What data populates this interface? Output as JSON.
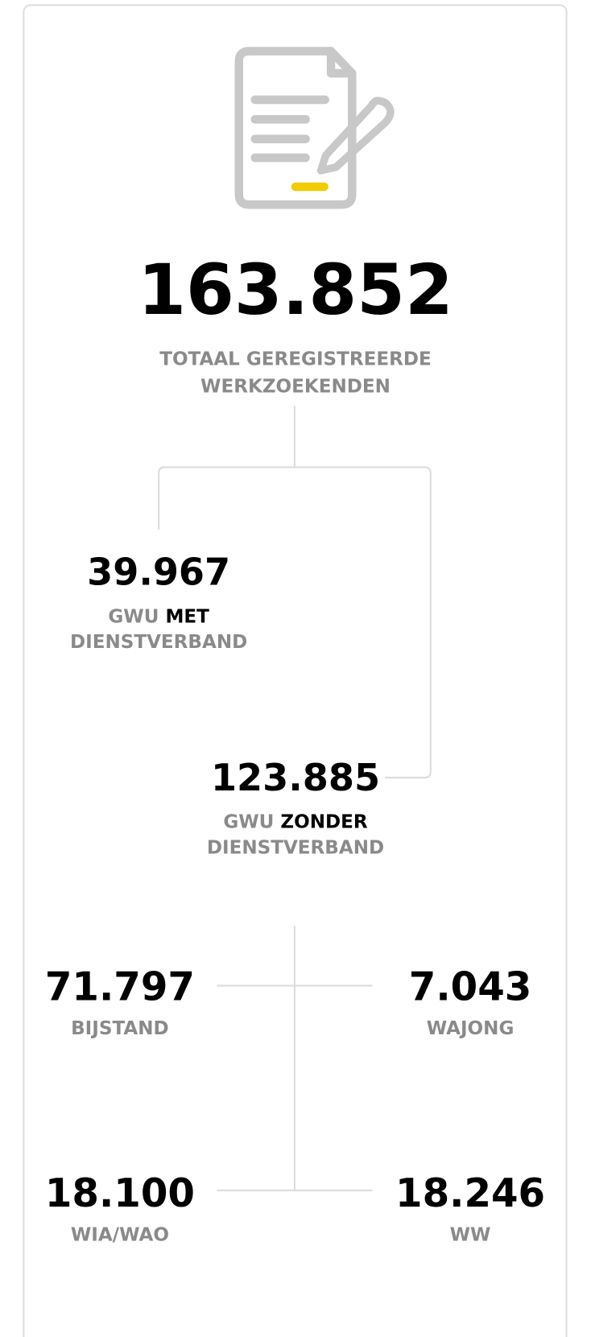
{
  "total": {
    "number": "163.852",
    "label_lines": [
      "TOTAAL GEREGISTREERDE",
      "WERKZOEKENDEN"
    ]
  },
  "with_contract": {
    "number": "39.967",
    "label_prefix": "GWU",
    "label_emphasis": "MET",
    "label_suffix": "DIENSTVERBAND"
  },
  "without_contract": {
    "number": "123.885",
    "label_prefix": "GWU",
    "label_emphasis": "ZONDER",
    "label_suffix": "DIENSTVERBAND"
  },
  "benefits": [
    {
      "number": "71.797",
      "label": "BIJSTAND"
    },
    {
      "number": "7.043",
      "label": "WAJONG"
    },
    {
      "number": "18.100",
      "label": "WIA/WAO"
    },
    {
      "number": "18.246",
      "label": "WW"
    }
  ]
}
